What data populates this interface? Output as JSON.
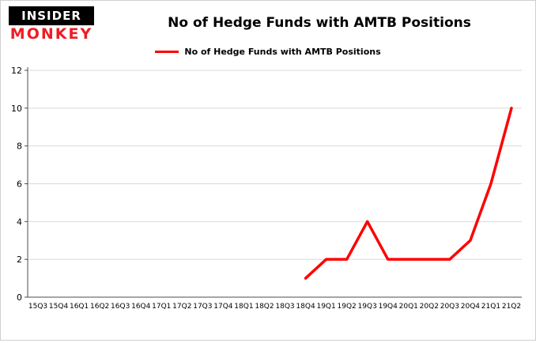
{
  "brand": {
    "line1": "INSIDER",
    "line2": "MONKEY",
    "accent_color": "#ee1c25"
  },
  "title": "No of Hedge Funds with AMTB Positions",
  "legend": {
    "label": "No of Hedge Funds with AMTB Positions",
    "color": "#fe0000"
  },
  "chart_data": {
    "type": "line",
    "title": "No of Hedge Funds with AMTB Positions",
    "categories": [
      "15Q3",
      "15Q4",
      "16Q1",
      "16Q2",
      "16Q3",
      "16Q4",
      "17Q1",
      "17Q2",
      "17Q3",
      "17Q4",
      "18Q1",
      "18Q2",
      "18Q3",
      "18Q4",
      "19Q1",
      "19Q2",
      "19Q3",
      "19Q4",
      "20Q1",
      "20Q2",
      "20Q3",
      "20Q4",
      "21Q1",
      "21Q2"
    ],
    "series": [
      {
        "name": "No of Hedge Funds with AMTB Positions",
        "color": "#fe0000",
        "values": [
          null,
          null,
          null,
          null,
          null,
          null,
          null,
          null,
          null,
          null,
          null,
          null,
          null,
          1,
          2,
          2,
          4,
          2,
          2,
          2,
          2,
          3,
          6,
          10
        ]
      }
    ],
    "xlabel": "",
    "ylabel": "",
    "ylim": [
      0,
      12
    ],
    "yticks": [
      0,
      2,
      4,
      6,
      8,
      10,
      12
    ],
    "grid": true,
    "legend_position": "top",
    "gridline_color": "#d9d9d9",
    "axis_color": "#4d4d4d",
    "tick_label_color": "#000000"
  }
}
